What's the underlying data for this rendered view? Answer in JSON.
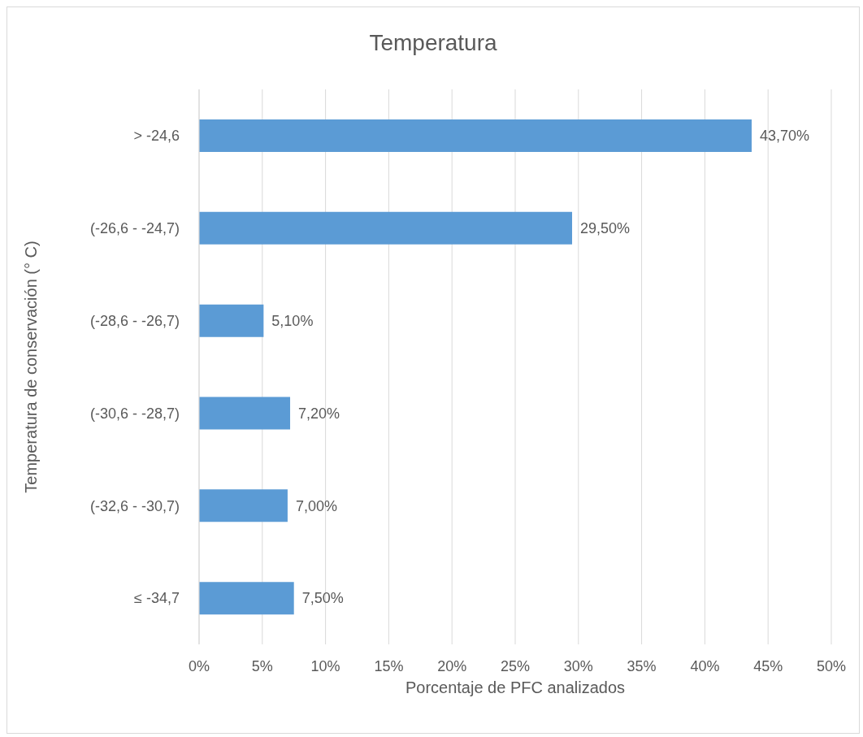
{
  "chart_data": {
    "type": "bar",
    "orientation": "horizontal",
    "title": "Temperatura",
    "xlabel": "Porcentaje de PFC analizados",
    "ylabel": "Temperatura de conservación (° C)",
    "categories": [
      "> -24,6",
      "(-26,6 -  -24,7)",
      "(-28,6 -  -26,7)",
      "(-30,6 -  -28,7)",
      "(-32,6 -  -30,7)",
      "≤ -34,7"
    ],
    "values": [
      43.7,
      29.5,
      5.1,
      7.2,
      7.0,
      7.5
    ],
    "value_labels": [
      "43,70%",
      "29,50%",
      "5,10%",
      "7,20%",
      "7,00%",
      "7,50%"
    ],
    "color": "#5b9bd5",
    "xlim": [
      0,
      50
    ],
    "xticks": [
      {
        "value": 0,
        "label": "0%"
      },
      {
        "value": 5,
        "label": "5%"
      },
      {
        "value": 10,
        "label": "10%"
      },
      {
        "value": 15,
        "label": "15%"
      },
      {
        "value": 20,
        "label": "20%"
      },
      {
        "value": 25,
        "label": "25%"
      },
      {
        "value": 30,
        "label": "30%"
      },
      {
        "value": 35,
        "label": "35%"
      },
      {
        "value": 40,
        "label": "40%"
      },
      {
        "value": 45,
        "label": "45%"
      },
      {
        "value": 50,
        "label": "50%"
      }
    ],
    "grid": "x",
    "legend": false
  }
}
